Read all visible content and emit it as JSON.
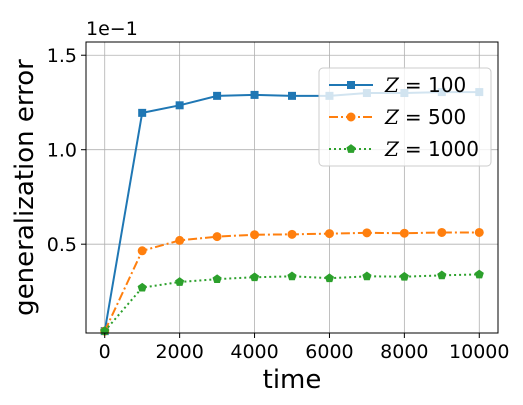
{
  "chart_data": {
    "type": "line",
    "xlabel": "time",
    "ylabel": "generalization error",
    "y_offset_label": "1e−1",
    "xlim": [
      -500,
      10500
    ],
    "ylim": [
      0.03,
      1.57
    ],
    "x_ticks": [
      0,
      2000,
      4000,
      6000,
      8000,
      10000
    ],
    "x_tick_labels": [
      "0",
      "2000",
      "4000",
      "6000",
      "8000",
      "10000"
    ],
    "y_ticks": [
      0.5,
      1.0,
      1.5
    ],
    "y_tick_labels": [
      "0.5",
      "1.0",
      "1.5"
    ],
    "grid": true,
    "legend_position": "upper-right",
    "x": [
      0,
      1000,
      2000,
      3000,
      4000,
      5000,
      6000,
      7000,
      8000,
      9000,
      10000
    ],
    "series": [
      {
        "name": "Z = 100",
        "legend_var": "Z",
        "legend_value": "= 100",
        "color": "#1f77b4",
        "linestyle": "solid",
        "marker": "square",
        "values": [
          0.04,
          1.195,
          1.235,
          1.285,
          1.29,
          1.285,
          1.285,
          1.3,
          1.3,
          1.305,
          1.305
        ]
      },
      {
        "name": "Z = 500",
        "legend_var": "Z",
        "legend_value": "= 500",
        "color": "#ff7f0e",
        "linestyle": "dashdot",
        "marker": "circle",
        "values": [
          0.04,
          0.465,
          0.52,
          0.54,
          0.55,
          0.552,
          0.556,
          0.56,
          0.558,
          0.562,
          0.562
        ]
      },
      {
        "name": "Z = 1000",
        "legend_var": "Z",
        "legend_value": "= 1000",
        "color": "#2ca02c",
        "linestyle": "dotted",
        "marker": "pentagon",
        "values": [
          0.04,
          0.27,
          0.3,
          0.315,
          0.325,
          0.33,
          0.32,
          0.33,
          0.328,
          0.335,
          0.34
        ]
      }
    ]
  }
}
